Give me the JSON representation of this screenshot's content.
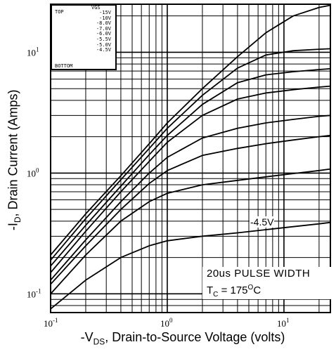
{
  "chart_data": {
    "type": "line",
    "xlabel": "-V DS, Drain-to-Source Voltage (volts)",
    "xlabel_parts": {
      "pre": "-V",
      "sub": "DS",
      "post": ", Drain-to-Source Voltage (volts)"
    },
    "ylabel_parts": {
      "pre": "-I",
      "sub": "D",
      "post": ", Drain Current (Amps)"
    },
    "xscale": "log",
    "yscale": "log",
    "xlim": [
      0.1,
      25
    ],
    "ylim": [
      0.07,
      25
    ],
    "x_ticks": [
      {
        "base": "10",
        "exp": "-1"
      },
      {
        "base": "10",
        "exp": "0"
      },
      {
        "base": "10",
        "exp": "1"
      }
    ],
    "y_ticks": [
      {
        "base": "10",
        "exp": "-1"
      },
      {
        "base": "10",
        "exp": "0"
      },
      {
        "base": "10",
        "exp": "1"
      }
    ],
    "grid": true,
    "legend": {
      "top_label": "TOP",
      "bottom_label": "BOTTOM",
      "header": "VGS",
      "entries": [
        "-15V",
        "-10V",
        "-8.0V",
        "-7.0V",
        "-6.0V",
        "-5.5V",
        "-5.0V",
        "-4.5V"
      ]
    },
    "annotations": {
      "pulse": "20us PULSE WIDTH",
      "temp_pre": "T",
      "temp_sub": "C",
      "temp_mid": " = 175",
      "temp_sup": "O",
      "temp_post": "C",
      "curve_label": "-4.5V"
    },
    "series": [
      {
        "name": "-15V",
        "x": [
          0.1,
          0.2,
          0.4,
          0.7,
          1.0,
          2.0,
          4.0,
          7.0,
          12.0,
          20.0,
          25.0
        ],
        "y": [
          0.21,
          0.46,
          0.95,
          1.75,
          2.6,
          5.0,
          9.2,
          14.5,
          20.0,
          23.5,
          24.5
        ]
      },
      {
        "name": "-10V",
        "x": [
          0.1,
          0.2,
          0.4,
          0.7,
          1.0,
          2.0,
          4.0,
          7.0,
          12.0,
          20.0,
          25.0
        ],
        "y": [
          0.19,
          0.42,
          0.88,
          1.6,
          2.35,
          4.4,
          7.4,
          9.5,
          10.3,
          10.6,
          10.7
        ]
      },
      {
        "name": "-8.0V",
        "x": [
          0.1,
          0.2,
          0.4,
          0.7,
          1.0,
          2.0,
          4.0,
          7.0,
          12.0,
          20.0,
          25.0
        ],
        "y": [
          0.17,
          0.37,
          0.78,
          1.42,
          2.05,
          3.7,
          5.6,
          6.5,
          6.9,
          7.2,
          7.3
        ]
      },
      {
        "name": "-7.0V",
        "x": [
          0.1,
          0.2,
          0.4,
          0.7,
          1.0,
          2.0,
          4.0,
          7.0,
          12.0,
          20.0,
          25.0
        ],
        "y": [
          0.15,
          0.33,
          0.7,
          1.25,
          1.8,
          3.0,
          4.1,
          4.6,
          4.9,
          5.15,
          5.25
        ]
      },
      {
        "name": "-6.0V",
        "x": [
          0.1,
          0.2,
          0.4,
          0.7,
          1.0,
          2.0,
          4.0,
          7.0,
          12.0,
          20.0,
          25.0
        ],
        "y": [
          0.13,
          0.28,
          0.58,
          1.0,
          1.35,
          1.95,
          2.35,
          2.6,
          2.78,
          2.95,
          3.0
        ]
      },
      {
        "name": "-5.5V",
        "x": [
          0.1,
          0.2,
          0.4,
          0.7,
          1.0,
          2.0,
          4.0,
          7.0,
          12.0,
          20.0,
          25.0
        ],
        "y": [
          0.12,
          0.25,
          0.5,
          0.82,
          1.05,
          1.4,
          1.6,
          1.75,
          1.88,
          2.0,
          2.05
        ]
      },
      {
        "name": "-5.0V",
        "x": [
          0.1,
          0.2,
          0.4,
          0.7,
          1.0,
          2.0,
          4.0,
          7.0,
          12.0,
          20.0,
          25.0
        ],
        "y": [
          0.1,
          0.21,
          0.4,
          0.58,
          0.68,
          0.8,
          0.87,
          0.93,
          0.99,
          1.05,
          1.08
        ]
      },
      {
        "name": "-4.5V",
        "x": [
          0.1,
          0.2,
          0.4,
          0.7,
          1.0,
          2.0,
          4.0,
          7.0,
          12.0,
          20.0,
          25.0
        ],
        "y": [
          0.075,
          0.13,
          0.2,
          0.25,
          0.275,
          0.3,
          0.32,
          0.34,
          0.36,
          0.38,
          0.39
        ]
      }
    ]
  }
}
